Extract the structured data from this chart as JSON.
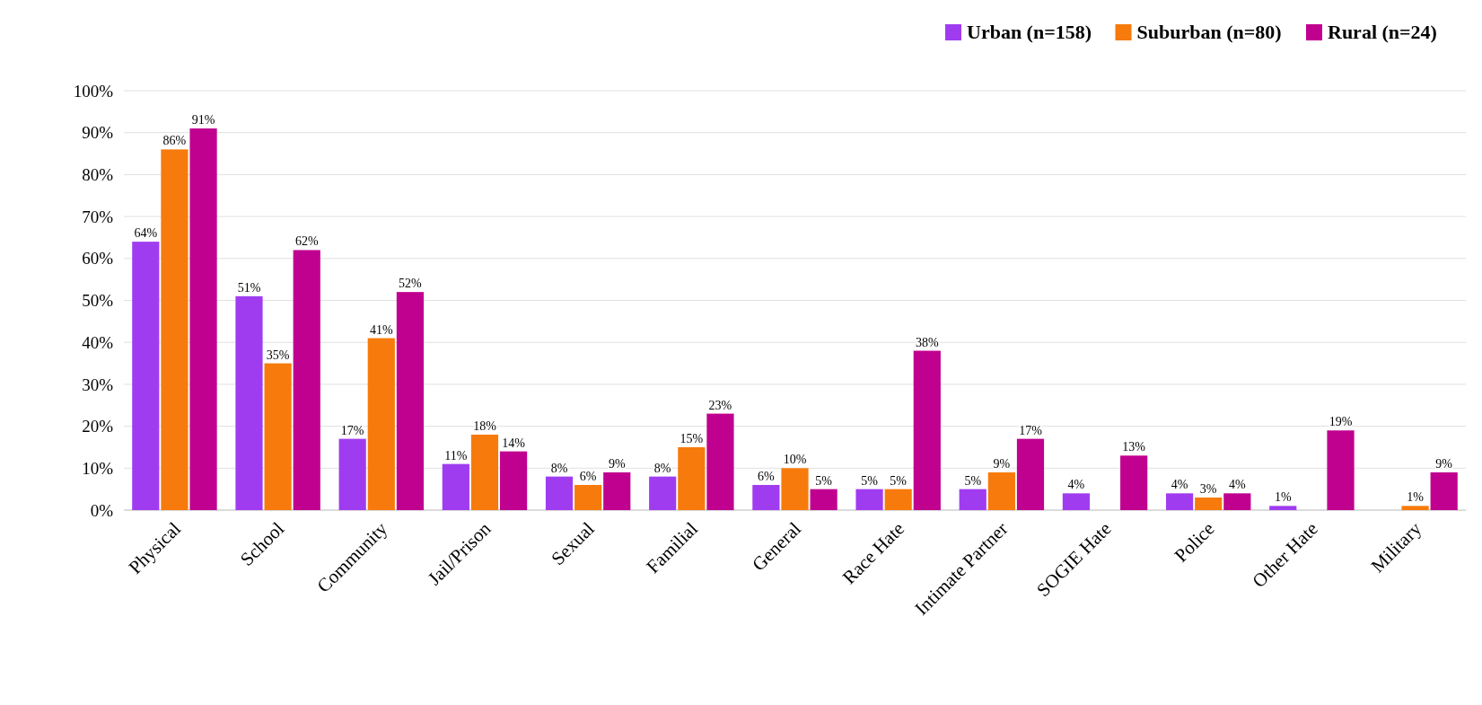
{
  "chart_data": {
    "type": "bar",
    "categories": [
      "Physical",
      "School",
      "Community",
      "Jail/Prison",
      "Sexual",
      "Familial",
      "General",
      "Race Hate",
      "Intimate Partner",
      "SOGIE Hate",
      "Police",
      "Other Hate",
      "Military"
    ],
    "series": [
      {
        "name": "Urban (n=158)",
        "color": "#a03cf0",
        "values": [
          64,
          51,
          17,
          11,
          8,
          8,
          6,
          5,
          5,
          4,
          4,
          1,
          null
        ],
        "value_labels": [
          "64%",
          "51%",
          "17%",
          "11%",
          "8%",
          "8%",
          "6%",
          "5%",
          "5%",
          "4%",
          "4%",
          "1%",
          null
        ]
      },
      {
        "name": "Suburban (n=80)",
        "color": "#f77b0c",
        "values": [
          86,
          35,
          41,
          18,
          6,
          15,
          10,
          5,
          9,
          null,
          3,
          null,
          1
        ],
        "value_labels": [
          "86%",
          "35%",
          "41%",
          "18%",
          "6%",
          "15%",
          "10%",
          "5%",
          "9%",
          null,
          "3%",
          null,
          "1%"
        ]
      },
      {
        "name": "Rural (n=24)",
        "color": "#c0008f",
        "values": [
          91,
          62,
          52,
          14,
          9,
          23,
          5,
          38,
          17,
          13,
          4,
          19,
          9
        ],
        "value_labels": [
          "91%",
          "62%",
          "52%",
          "14%",
          "9%",
          "23%",
          "5%",
          "38%",
          "17%",
          "13%",
          "4%",
          "19%",
          "9%"
        ]
      }
    ],
    "ylim": [
      0,
      100
    ],
    "yticks": [
      {
        "value": 0,
        "label": "0%"
      },
      {
        "value": 10,
        "label": "10%"
      },
      {
        "value": 20,
        "label": "20%"
      },
      {
        "value": 30,
        "label": "30%"
      },
      {
        "value": 40,
        "label": "40%"
      },
      {
        "value": 50,
        "label": "50%"
      },
      {
        "value": 60,
        "label": "60%"
      },
      {
        "value": 70,
        "label": "70%"
      },
      {
        "value": 80,
        "label": "80%"
      },
      {
        "value": 90,
        "label": "90%"
      },
      {
        "value": 100,
        "label": "100%"
      }
    ],
    "grid": "y",
    "legend": "top right"
  }
}
